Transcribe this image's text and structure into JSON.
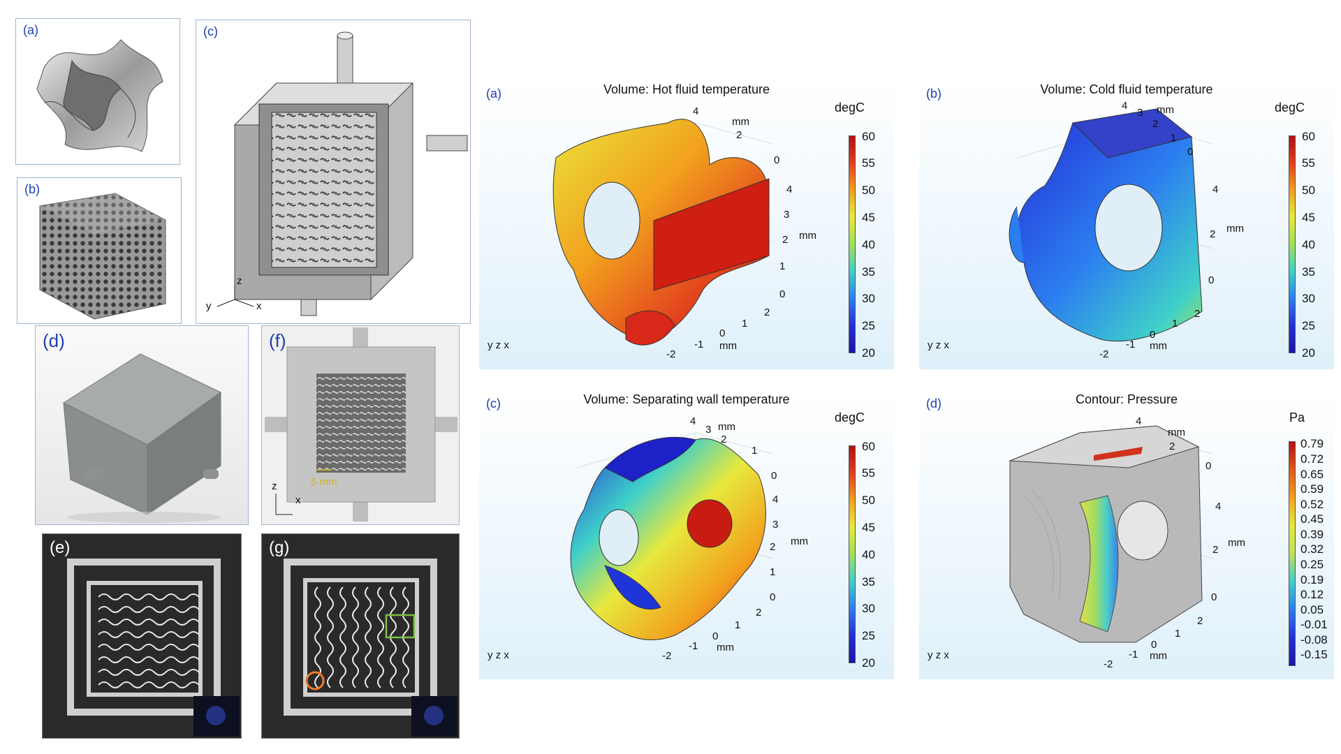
{
  "left_panels": {
    "a": {
      "label": "(a)"
    },
    "b": {
      "label": "(b)"
    },
    "c": {
      "label": "(c)",
      "axis_y": "y",
      "axis_z": "z",
      "axis_x": "x"
    },
    "d": {
      "label": "(d)"
    },
    "f": {
      "label": "(f)",
      "scale": "5 mm",
      "axis_z": "z",
      "axis_x": "x"
    },
    "e": {
      "label": "(e)"
    },
    "g": {
      "label": "(g)"
    }
  },
  "sim_panels": [
    {
      "label": "(a)",
      "title": "Volume: Hot fluid temperature",
      "unit": "degC",
      "ticks": [
        "60",
        "55",
        "50",
        "45",
        "40",
        "35",
        "30",
        "25",
        "20"
      ],
      "axis_top": [
        "4",
        "mm",
        "2",
        "0"
      ],
      "axis_right": [
        "4",
        "3",
        "mm",
        "2",
        "1",
        "0"
      ],
      "axis_bottom": [
        "2",
        "1",
        "0",
        "mm",
        "-1",
        "-2"
      ],
      "triad": "y z x"
    },
    {
      "label": "(b)",
      "title": "Volume: Cold fluid temperature",
      "unit": "degC",
      "ticks": [
        "60",
        "55",
        "50",
        "45",
        "40",
        "35",
        "30",
        "25",
        "20"
      ],
      "axis_top": [
        "4",
        "3",
        "mm",
        "2",
        "1",
        "0"
      ],
      "axis_right": [
        "4",
        "mm",
        "2",
        "0"
      ],
      "axis_bottom": [
        "2",
        "1",
        "0",
        "mm",
        "-1",
        "-2"
      ],
      "triad": "y z x"
    },
    {
      "label": "(c)",
      "title": "Volume: Separating wall temperature",
      "unit": "degC",
      "ticks": [
        "60",
        "55",
        "50",
        "45",
        "40",
        "35",
        "30",
        "25",
        "20"
      ],
      "axis_top": [
        "4",
        "3",
        "mm",
        "2",
        "1",
        "0"
      ],
      "axis_right": [
        "4",
        "3",
        "mm",
        "2",
        "1",
        "0"
      ],
      "axis_bottom": [
        "2",
        "1",
        "0",
        "mm",
        "-1",
        "-2"
      ],
      "triad": "y z x"
    },
    {
      "label": "(d)",
      "title": "Contour: Pressure",
      "unit": "Pa",
      "ticks": [
        "0.79",
        "0.72",
        "0.65",
        "0.59",
        "0.52",
        "0.45",
        "0.39",
        "0.32",
        "0.25",
        "0.19",
        "0.12",
        "0.05",
        "-0.01",
        "-0.08",
        "-0.15"
      ],
      "axis_top": [
        "4",
        "mm",
        "2",
        "0"
      ],
      "axis_right": [
        "4",
        "mm",
        "2",
        "0"
      ],
      "axis_bottom": [
        "2",
        "1",
        "0",
        "mm",
        "-1",
        "-2"
      ],
      "triad": "y z x"
    }
  ],
  "colors": {
    "label_blue": "#1f3fb0",
    "panel_border": "#9fb3d1"
  }
}
